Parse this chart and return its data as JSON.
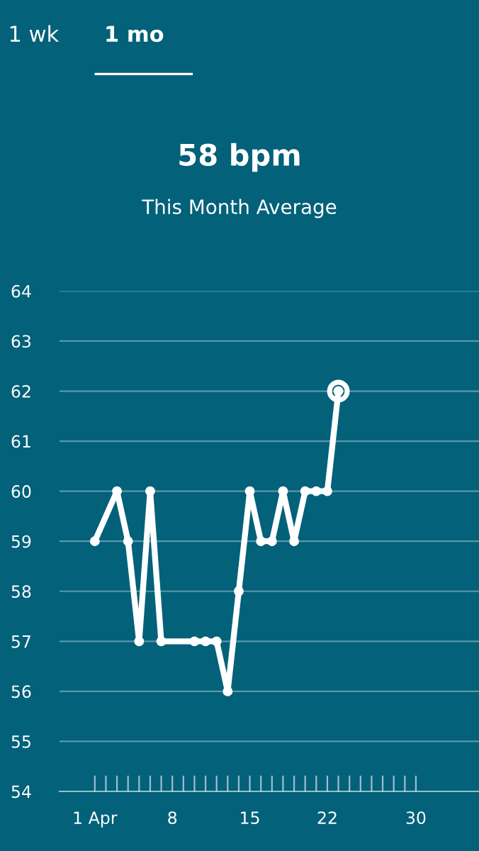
{
  "chart_data": {
    "type": "line",
    "title": "58 bpm",
    "subtitle": "This Month Average",
    "annotations": [
      "1 wk",
      "1 mo"
    ],
    "x": [
      1,
      3,
      4,
      5,
      6,
      7,
      10,
      11,
      12,
      13,
      14,
      15,
      16,
      17,
      18,
      19,
      20,
      21,
      22,
      23
    ],
    "series": [
      {
        "color": "#ffffff",
        "values": [
          59,
          60,
          59,
          57,
          60,
          57,
          57,
          57,
          57,
          56,
          58,
          60,
          59,
          59,
          60,
          59,
          60,
          60,
          60,
          62
        ]
      }
    ],
    "xlim": [
      -2.2,
      35.7
    ],
    "ylim": [
      54,
      64
    ],
    "xticks": [
      {
        "value": 1,
        "label": "1 Apr"
      },
      {
        "value": 2,
        "label": null
      },
      {
        "value": 3,
        "label": null
      },
      {
        "value": 4,
        "label": null
      },
      {
        "value": 5,
        "label": null
      },
      {
        "value": 6,
        "label": null
      },
      {
        "value": 7,
        "label": null
      },
      8,
      {
        "value": 9,
        "label": null
      },
      {
        "value": 10,
        "label": null
      },
      {
        "value": 11,
        "label": null
      },
      {
        "value": 12,
        "label": null
      },
      {
        "value": 13,
        "label": null
      },
      {
        "value": 14,
        "label": null
      },
      15,
      {
        "value": 16,
        "label": null
      },
      {
        "value": 17,
        "label": null
      },
      {
        "value": 18,
        "label": null
      },
      {
        "value": 19,
        "label": null
      },
      {
        "value": 20,
        "label": null
      },
      {
        "value": 21,
        "label": null
      },
      22,
      {
        "value": 23,
        "label": null
      },
      {
        "value": 24,
        "label": null
      },
      {
        "value": 25,
        "label": null
      },
      {
        "value": 26,
        "label": null
      },
      {
        "value": 27,
        "label": null
      },
      {
        "value": 28,
        "label": null
      },
      {
        "value": 29,
        "label": null
      },
      30
    ],
    "yticks": [
      54,
      55,
      56,
      57,
      58,
      59,
      60,
      61,
      62,
      63,
      64
    ],
    "grid": "y",
    "marker": "circle",
    "line_style": "solid"
  }
}
